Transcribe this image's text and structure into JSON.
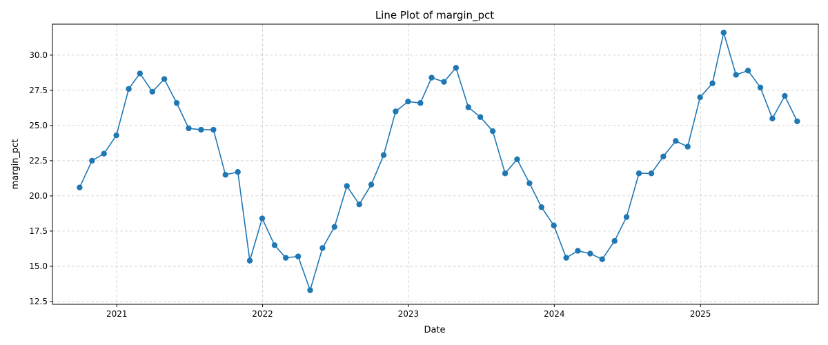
{
  "chart_data": {
    "type": "line",
    "title": "Line Plot of margin_pct",
    "xlabel": "Date",
    "ylabel": "margin_pct",
    "ylim": [
      12.3,
      32.2
    ],
    "xlim": [
      "2020-07-24",
      "2025-10-23"
    ],
    "yticks": [
      12.5,
      15.0,
      17.5,
      20.0,
      22.5,
      25.0,
      27.5,
      30.0
    ],
    "ytick_labels": [
      "12.5",
      "15.0",
      "17.5",
      "20.0",
      "22.5",
      "25.0",
      "27.5",
      "30.0"
    ],
    "xticks": [
      "2021-01-01",
      "2022-01-01",
      "2023-01-01",
      "2024-01-01",
      "2025-01-01"
    ],
    "xtick_labels": [
      "2021",
      "2022",
      "2023",
      "2024",
      "2025"
    ],
    "grid": true,
    "color": "#1f77b4",
    "marker": "circle",
    "series": [
      {
        "x": [
          "2020-09-30",
          "2020-10-31",
          "2020-11-30",
          "2020-12-31",
          "2021-01-31",
          "2021-02-28",
          "2021-03-31",
          "2021-04-30",
          "2021-05-31",
          "2021-06-30",
          "2021-07-31",
          "2021-08-31",
          "2021-09-30",
          "2021-10-31",
          "2021-11-30",
          "2021-12-31",
          "2022-01-31",
          "2022-02-28",
          "2022-03-31",
          "2022-04-30",
          "2022-05-31",
          "2022-06-30",
          "2022-07-31",
          "2022-08-31",
          "2022-09-30",
          "2022-10-31",
          "2022-11-30",
          "2022-12-31",
          "2023-01-31",
          "2023-02-28",
          "2023-03-31",
          "2023-04-30",
          "2023-05-31",
          "2023-06-30",
          "2023-07-31",
          "2023-08-31",
          "2023-09-30",
          "2023-10-31",
          "2023-11-30",
          "2023-12-31",
          "2024-01-31",
          "2024-02-29",
          "2024-03-31",
          "2024-04-30",
          "2024-05-31",
          "2024-06-30",
          "2024-07-31",
          "2024-08-31",
          "2024-09-30",
          "2024-10-31",
          "2024-11-30",
          "2024-12-31",
          "2025-01-31",
          "2025-02-28",
          "2025-03-31",
          "2025-04-30",
          "2025-05-31",
          "2025-06-30",
          "2025-07-31",
          "2025-08-31"
        ],
        "values": [
          20.6,
          22.5,
          23.0,
          24.3,
          27.6,
          28.7,
          27.4,
          28.3,
          26.6,
          24.8,
          24.7,
          24.7,
          21.5,
          21.7,
          15.4,
          18.4,
          16.5,
          15.6,
          15.7,
          13.3,
          16.3,
          17.8,
          20.7,
          19.4,
          20.8,
          22.9,
          26.0,
          26.7,
          26.6,
          28.4,
          28.1,
          29.1,
          26.3,
          25.6,
          24.6,
          21.6,
          22.6,
          20.9,
          19.2,
          17.9,
          15.6,
          16.1,
          15.9,
          15.5,
          16.8,
          18.5,
          21.6,
          21.6,
          22.8,
          23.9,
          23.5,
          27.0,
          28.0,
          31.6,
          28.6,
          28.9,
          27.7,
          25.5,
          27.1,
          25.3
        ]
      }
    ]
  }
}
